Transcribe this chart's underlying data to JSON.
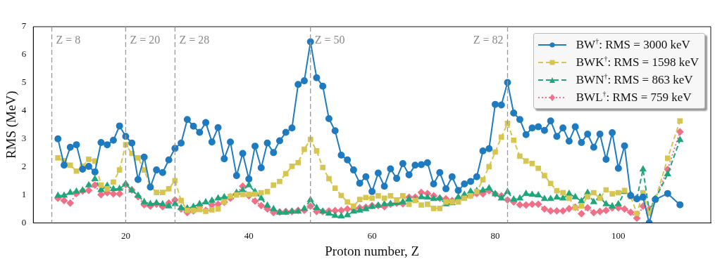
{
  "chart_data": {
    "type": "line",
    "xlabel": "Proton number, Z",
    "ylabel": "RMS (MeV)",
    "x": [
      9,
      10,
      11,
      12,
      13,
      14,
      15,
      16,
      17,
      18,
      19,
      20,
      21,
      22,
      23,
      24,
      25,
      26,
      27,
      28,
      29,
      30,
      31,
      32,
      33,
      34,
      35,
      36,
      37,
      38,
      39,
      40,
      41,
      42,
      43,
      44,
      45,
      46,
      47,
      48,
      49,
      50,
      51,
      52,
      53,
      54,
      55,
      56,
      57,
      58,
      59,
      60,
      61,
      62,
      63,
      64,
      65,
      66,
      67,
      68,
      69,
      70,
      71,
      72,
      73,
      74,
      75,
      76,
      77,
      78,
      79,
      80,
      81,
      82,
      83,
      84,
      85,
      86,
      87,
      88,
      89,
      90,
      91,
      92,
      93,
      94,
      95,
      96,
      97,
      98,
      99,
      100,
      101,
      102,
      103,
      104,
      105,
      106,
      108,
      110
    ],
    "xlim": [
      5,
      115
    ],
    "xticks": [
      20,
      40,
      60,
      80,
      100
    ],
    "ylim": [
      0,
      7
    ],
    "yticks": [
      0,
      1,
      2,
      3,
      4,
      5,
      6,
      7
    ],
    "legend": "top right",
    "ref_lines": [
      {
        "axis": "x",
        "value": 8,
        "label": "Z = 8",
        "line_style": "dashed"
      },
      {
        "axis": "x",
        "value": 20,
        "label": "Z = 20",
        "line_style": "dashed"
      },
      {
        "axis": "x",
        "value": 28,
        "label": "Z = 28",
        "line_style": "dashed"
      },
      {
        "axis": "x",
        "value": 50,
        "label": "Z = 50",
        "line_style": "dashed"
      },
      {
        "axis": "x",
        "value": 82,
        "label": "Z = 82",
        "line_style": "dashed"
      }
    ],
    "series": [
      {
        "name": "BW$^{†}$: RMS = 3000 keV",
        "color": "#1f7bbf",
        "marker": "circle",
        "line_style": "solid",
        "values": [
          3.0,
          2.06,
          2.7,
          2.79,
          1.92,
          2.02,
          1.82,
          2.87,
          2.79,
          2.95,
          3.46,
          3.09,
          2.85,
          1.55,
          2.35,
          1.28,
          1.89,
          1.8,
          2.25,
          2.66,
          2.85,
          3.69,
          3.45,
          3.23,
          3.58,
          2.89,
          3.4,
          2.29,
          2.89,
          1.69,
          2.48,
          1.57,
          2.74,
          1.97,
          2.85,
          2.51,
          2.93,
          3.23,
          3.39,
          4.94,
          5.07,
          6.46,
          5.18,
          4.88,
          3.72,
          3.29,
          2.42,
          2.25,
          1.89,
          1.42,
          1.65,
          1.12,
          1.78,
          1.31,
          1.93,
          1.59,
          2.12,
          1.72,
          2.06,
          2.08,
          2.15,
          1.39,
          1.8,
          1.22,
          1.65,
          1.16,
          1.39,
          1.48,
          1.65,
          2.57,
          2.65,
          4.23,
          4.21,
          5.01,
          3.92,
          3.69,
          3.15,
          3.39,
          3.43,
          3.3,
          3.64,
          3.09,
          3.39,
          2.92,
          3.43,
          2.87,
          3.17,
          2.7,
          3.17,
          2.27,
          3.22,
          1.95,
          2.75,
          0.98,
          0.86,
          0.92,
          0,
          0.84,
          1.05,
          0.65
        ]
      },
      {
        "name": "BWK$^{†}$: RMS = 1598 keV",
        "color": "#d6c54f",
        "marker": "square",
        "line_style": "dashed",
        "values": [
          2.32,
          2.22,
          2.06,
          1.85,
          2.02,
          2.27,
          2.21,
          1.35,
          1.22,
          1.46,
          1.89,
          2.79,
          2.48,
          2.32,
          1.89,
          1.31,
          1.09,
          1.09,
          1.22,
          1.51,
          0.8,
          0.45,
          0.45,
          0.48,
          0.42,
          0.47,
          0.5,
          0.75,
          0.95,
          1.0,
          1.02,
          1.02,
          1.03,
          1.08,
          1.12,
          1.35,
          1.48,
          1.76,
          2.02,
          2.15,
          2.63,
          2.98,
          2.57,
          1.98,
          1.58,
          1.24,
          0.98,
          0.75,
          0.6,
          0.84,
          0.91,
          0.88,
          0.97,
          0.88,
          0.97,
          0.82,
          0.97,
          0.67,
          0.8,
          0.64,
          0.67,
          0.52,
          0.52,
          0.75,
          0.75,
          0.75,
          0.88,
          0.97,
          1.12,
          1.54,
          2.01,
          2.53,
          3.06,
          3.55,
          2.95,
          2.38,
          2.21,
          2.12,
          1.95,
          1.69,
          1.41,
          1.15,
          1.08,
          0.88,
          0.54,
          0.61,
          0.94,
          1.08,
          0.88,
          1.18,
          1.04,
          1.08,
          1.16,
          0.94,
          0.34,
          1.08,
          0.34,
          0.82,
          2.31,
          3.64
        ]
      },
      {
        "name": "BWN$^{†}$: RMS = 863 keV",
        "color": "#1fa67a",
        "marker": "triangle",
        "line_style": "dashed",
        "values": [
          0.97,
          0.98,
          1.08,
          1.12,
          1.16,
          1.35,
          1.57,
          1.18,
          1.33,
          1.21,
          1.22,
          1.39,
          1.16,
          0.98,
          0.75,
          0.68,
          0.71,
          0.67,
          0.6,
          0.68,
          0.54,
          0.52,
          0.58,
          0.68,
          0.74,
          0.8,
          0.88,
          0.92,
          0.92,
          1.08,
          1.16,
          1.35,
          1.11,
          0.88,
          0.62,
          0.5,
          0.37,
          0.37,
          0.41,
          0.41,
          0.51,
          0.82,
          0.54,
          0.41,
          0.34,
          0.26,
          0.24,
          0.28,
          0.41,
          0.45,
          0.5,
          0.58,
          0.62,
          0.67,
          0.68,
          0.71,
          0.75,
          0.84,
          0.82,
          0.92,
          0.91,
          0.86,
          0.88,
          0.67,
          0.71,
          0.92,
          1.01,
          1.12,
          1.14,
          1.16,
          1.24,
          1.03,
          0.88,
          1.11,
          0.84,
          0.88,
          1.04,
          1.01,
          0.99,
          0.86,
          0.86,
          0.91,
          0.88,
          1.04,
          0.92,
          0.78,
          1.08,
          0.75,
          0.92,
          0.67,
          0.6,
          0.67,
          1.11,
          1.01,
          0.88,
          1.91,
          0.41,
          0.86,
          1.74,
          2.96
        ]
      },
      {
        "name": "BWL$^{†}$: RMS = 759 keV",
        "color": "#f07088",
        "marker": "diamond",
        "line_style": "dotted",
        "values": [
          0.88,
          0.8,
          0.71,
          1.05,
          1.14,
          1.16,
          1.35,
          1.01,
          1.08,
          1.04,
          1.04,
          1.37,
          1.18,
          0.94,
          0.65,
          0.6,
          0.67,
          0.58,
          0.71,
          0.82,
          0.5,
          0.37,
          0.43,
          0.62,
          0.45,
          0.65,
          0.67,
          0.74,
          0.88,
          1.04,
          1.31,
          0.97,
          0.78,
          0.62,
          0.5,
          0.37,
          0.39,
          0.41,
          0.41,
          0.45,
          0.45,
          0.6,
          0.41,
          0.41,
          0.43,
          0.44,
          0.45,
          0.5,
          0.5,
          0.54,
          0.56,
          0.62,
          0.62,
          0.58,
          0.67,
          0.71,
          0.68,
          0.92,
          0.92,
          1.09,
          1.05,
          0.97,
          0.88,
          0.86,
          0.8,
          0.88,
          0.92,
          0.98,
          1.05,
          1.04,
          1.15,
          1.04,
          0.97,
          0.82,
          0.75,
          0.65,
          0.64,
          0.67,
          0.67,
          0.5,
          0.43,
          0.43,
          0.43,
          0.51,
          0.56,
          0.33,
          0.54,
          0.37,
          0.41,
          0.45,
          0.54,
          0.54,
          0.5,
          0.38,
          0.17,
          0.6,
          0.5,
          0.86,
          1.91,
          3.25
        ]
      }
    ]
  }
}
